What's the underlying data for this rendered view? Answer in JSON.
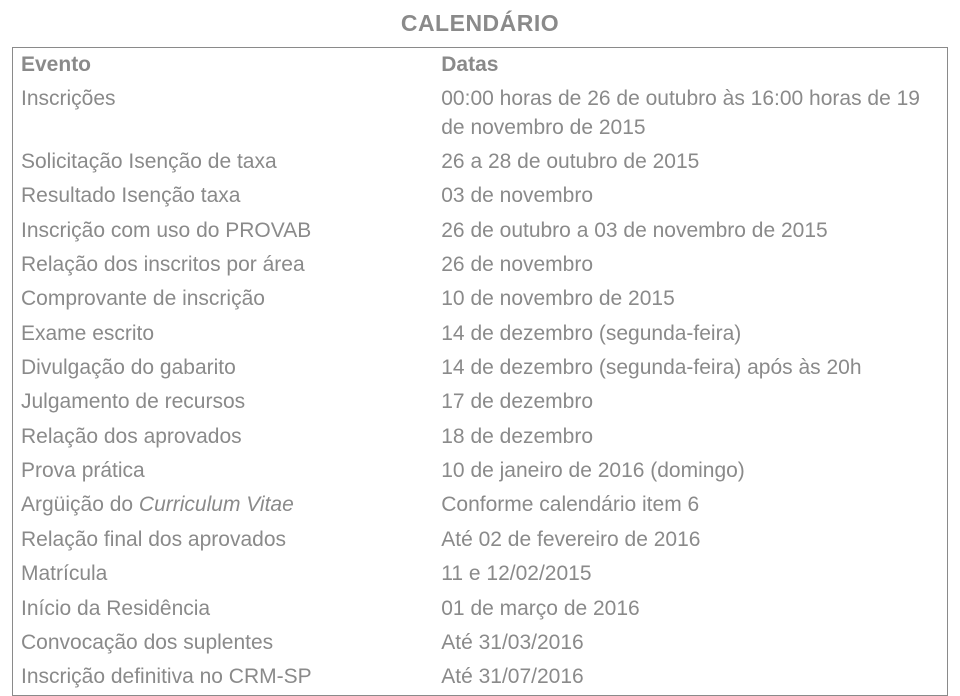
{
  "title": "CALENDÁRIO",
  "table": {
    "header": {
      "event": "Evento",
      "dates": "Datas"
    },
    "rows": [
      {
        "event": "Inscrições",
        "dates": "00:00 horas de 26 de outubro às 16:00 horas de 19 de novembro de 2015"
      },
      {
        "event": "Solicitação Isenção de taxa",
        "dates": "26 a 28 de outubro de 2015"
      },
      {
        "event": "Resultado Isenção taxa",
        "dates": "03 de novembro"
      },
      {
        "event": "Inscrição com uso do PROVAB",
        "dates": "26 de outubro a 03 de novembro de 2015"
      },
      {
        "event": "Relação dos inscritos por área",
        "dates": "26 de novembro"
      },
      {
        "event": "Comprovante de inscrição",
        "dates": "10 de novembro de 2015"
      },
      {
        "event": "Exame escrito",
        "dates": "14 de dezembro (segunda-feira)"
      },
      {
        "event": "Divulgação do gabarito",
        "dates": "14 de dezembro (segunda-feira) após às 20h"
      },
      {
        "event": "Julgamento de recursos",
        "dates": "17 de dezembro"
      },
      {
        "event": "Relação dos aprovados",
        "dates": "18 de dezembro"
      },
      {
        "event": "Prova prática",
        "dates": "10 de janeiro de 2016 (domingo)"
      },
      {
        "event_prefix": "Argüição do ",
        "event_italic": "Curriculum Vitae",
        "dates": "Conforme calendário item 6"
      },
      {
        "event": "Relação final dos aprovados",
        "dates": "Até 02 de fevereiro de 2016"
      },
      {
        "event": "Matrícula",
        "dates": "11 e 12/02/2015"
      },
      {
        "event": "Início da Residência",
        "dates": "01 de março de 2016"
      },
      {
        "event": "Convocação dos suplentes",
        "dates": "Até 31/03/2016"
      },
      {
        "event": "Inscrição definitiva no CRM-SP",
        "dates": "Até 31/07/2016"
      }
    ]
  },
  "styling": {
    "text_color": "#8a8a8a",
    "border_color": "#8a8a8a",
    "background_color": "#ffffff",
    "font_size_title": 23,
    "font_size_body": 21,
    "col1_width_pct": 45,
    "col2_width_pct": 55
  }
}
